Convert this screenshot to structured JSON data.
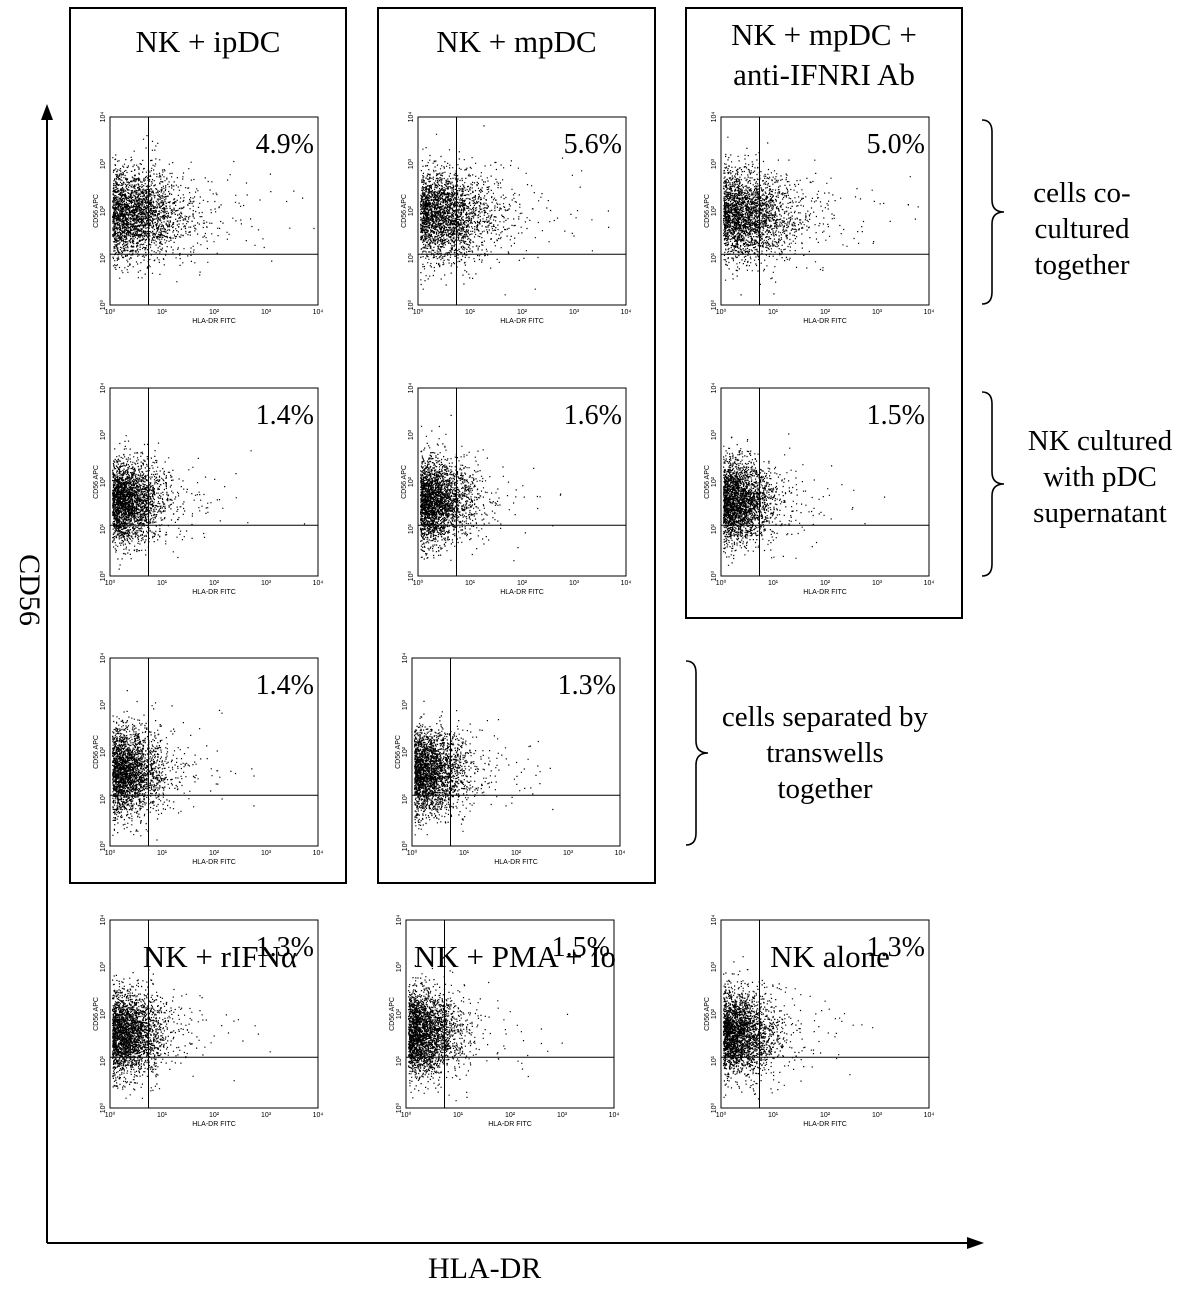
{
  "figure": {
    "y_axis_label": "CD56",
    "x_axis_label": "HLA-DR"
  },
  "column_titles": {
    "ipdc": "NK + ipDC",
    "mpdc": "NK + mpDC",
    "ab_line1": "NK + mpDC +",
    "ab_line2": "anti-IFNRI Ab"
  },
  "bottom_titles": {
    "rifn": "NK + rIFNα",
    "pma": "NK + PMA + Io",
    "alone": "NK alone"
  },
  "annotations": {
    "row1": [
      "cells co-",
      "cultured",
      "together"
    ],
    "row2": [
      "NK cultured",
      "with pDC",
      "supernatant"
    ],
    "row3": [
      "cells separated by",
      "transwells",
      "together"
    ]
  },
  "panel_axis": {
    "xlabel": "HLA-DR FITC",
    "ylabel": "CD56 APC",
    "ticks": [
      "10⁰",
      "10¹",
      "10²",
      "10³",
      "10⁴"
    ]
  },
  "chart_data": [
    {
      "type": "scatter",
      "id": "r1c1",
      "percent": "4.9%",
      "xlabel": "HLA-DR FITC",
      "ylabel": "CD56 APC",
      "xscale": "log",
      "yscale": "log",
      "xlim": [
        1,
        10000
      ],
      "ylim": [
        1,
        10000
      ],
      "gate": {
        "x": 5.5,
        "y": 12
      }
    },
    {
      "type": "scatter",
      "id": "r1c2",
      "percent": "5.6%",
      "xlabel": "HLA-DR FITC",
      "ylabel": "CD56 APC",
      "xscale": "log",
      "yscale": "log",
      "xlim": [
        1,
        10000
      ],
      "ylim": [
        1,
        10000
      ],
      "gate": {
        "x": 5.5,
        "y": 12
      }
    },
    {
      "type": "scatter",
      "id": "r1c3",
      "percent": "5.0%",
      "xlabel": "HLA-DR FITC",
      "ylabel": "CD56 APC",
      "xscale": "log",
      "yscale": "log",
      "xlim": [
        1,
        10000
      ],
      "ylim": [
        1,
        10000
      ],
      "gate": {
        "x": 5.5,
        "y": 12
      }
    },
    {
      "type": "scatter",
      "id": "r2c1",
      "percent": "1.4%",
      "xlabel": "HLA-DR FITC",
      "ylabel": "CD56 APC",
      "xscale": "log",
      "yscale": "log",
      "xlim": [
        1,
        10000
      ],
      "ylim": [
        1,
        10000
      ],
      "gate": {
        "x": 5.5,
        "y": 12
      }
    },
    {
      "type": "scatter",
      "id": "r2c2",
      "percent": "1.6%",
      "xlabel": "HLA-DR FITC",
      "ylabel": "CD56 APC",
      "xscale": "log",
      "yscale": "log",
      "xlim": [
        1,
        10000
      ],
      "ylim": [
        1,
        10000
      ],
      "gate": {
        "x": 5.5,
        "y": 12
      }
    },
    {
      "type": "scatter",
      "id": "r2c3",
      "percent": "1.5%",
      "xlabel": "HLA-DR FITC",
      "ylabel": "CD56 APC",
      "xscale": "log",
      "yscale": "log",
      "xlim": [
        1,
        10000
      ],
      "ylim": [
        1,
        10000
      ],
      "gate": {
        "x": 5.5,
        "y": 12
      }
    },
    {
      "type": "scatter",
      "id": "r3c1",
      "percent": "1.4%",
      "xlabel": "HLA-DR FITC",
      "ylabel": "CD56 APC",
      "xscale": "log",
      "yscale": "log",
      "xlim": [
        1,
        10000
      ],
      "ylim": [
        1,
        10000
      ],
      "gate": {
        "x": 5.5,
        "y": 12
      }
    },
    {
      "type": "scatter",
      "id": "r3c2",
      "percent": "1.3%",
      "xlabel": "HLA-DR FITC",
      "ylabel": "CD56 APC",
      "xscale": "log",
      "yscale": "log",
      "xlim": [
        1,
        10000
      ],
      "ylim": [
        1,
        10000
      ],
      "gate": {
        "x": 5.5,
        "y": 12
      }
    },
    {
      "type": "scatter",
      "id": "b1",
      "percent": "1.3%",
      "xlabel": "HLA-DR FITC",
      "ylabel": "CD56 APC",
      "xscale": "log",
      "yscale": "log",
      "xlim": [
        1,
        10000
      ],
      "ylim": [
        1,
        10000
      ],
      "gate": {
        "x": 5.5,
        "y": 12
      }
    },
    {
      "type": "scatter",
      "id": "b2",
      "percent": "1.5%",
      "xlabel": "HLA-DR FITC",
      "ylabel": "CD56 APC",
      "xscale": "log",
      "yscale": "log",
      "xlim": [
        1,
        10000
      ],
      "ylim": [
        1,
        10000
      ],
      "gate": {
        "x": 5.5,
        "y": 12
      }
    },
    {
      "type": "scatter",
      "id": "b3",
      "percent": "1.3%",
      "xlabel": "HLA-DR FITC",
      "ylabel": "CD56 APC",
      "xscale": "log",
      "yscale": "log",
      "xlim": [
        1,
        10000
      ],
      "ylim": [
        1,
        10000
      ],
      "gate": {
        "x": 5.5,
        "y": 12
      }
    }
  ]
}
